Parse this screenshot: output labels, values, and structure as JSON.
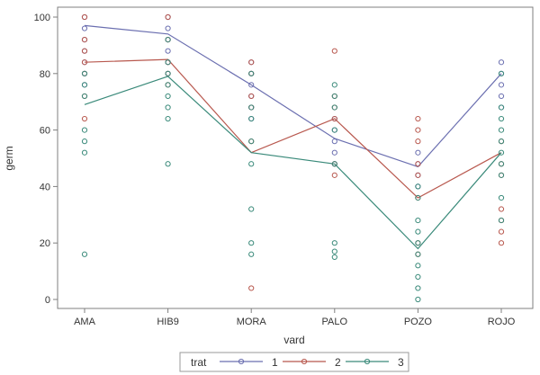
{
  "chart_data": {
    "type": "scatter",
    "xlabel": "vard",
    "ylabel": "germ",
    "categories": [
      "AMA",
      "HIB9",
      "MORA",
      "PALO",
      "POZO",
      "ROJO"
    ],
    "ylim": [
      0,
      100
    ],
    "yticks": [
      "0",
      "20",
      "40",
      "60",
      "80",
      "100"
    ],
    "grid": false,
    "legend": {
      "title": "trat",
      "position": "bottom"
    },
    "series": [
      {
        "name": "1",
        "color": "#6b6fb0",
        "mean": [
          97,
          94,
          76,
          57,
          47,
          80
        ],
        "points": [
          [
            100,
            96,
            92,
            88,
            84,
            80,
            76
          ],
          [
            100,
            96,
            92,
            88,
            84,
            80
          ],
          [
            84,
            80,
            76,
            72,
            68,
            64
          ],
          [
            64,
            60,
            56,
            52,
            48
          ],
          [
            52,
            48,
            44,
            40
          ],
          [
            84,
            80,
            76,
            72,
            68
          ]
        ]
      },
      {
        "name": "2",
        "color": "#b8584e",
        "mean": [
          84,
          85,
          52,
          64,
          36,
          52
        ],
        "points": [
          [
            100,
            92,
            88,
            84,
            80,
            72,
            64
          ],
          [
            100,
            92,
            84,
            80,
            76
          ],
          [
            84,
            80,
            72,
            68,
            56,
            4
          ],
          [
            88,
            72,
            68,
            64,
            48,
            44
          ],
          [
            64,
            60,
            56,
            48,
            44,
            36,
            20,
            16
          ],
          [
            56,
            48,
            44,
            32,
            28,
            24,
            20
          ]
        ]
      },
      {
        "name": "3",
        "color": "#3a8a7a",
        "mean": [
          69,
          79,
          52,
          48,
          18,
          52
        ],
        "points": [
          [
            80,
            76,
            72,
            60,
            56,
            52,
            16
          ],
          [
            92,
            84,
            80,
            76,
            72,
            68,
            64,
            48
          ],
          [
            80,
            68,
            64,
            56,
            48,
            32,
            20,
            16
          ],
          [
            76,
            72,
            68,
            60,
            48,
            20,
            17,
            15
          ],
          [
            40,
            36,
            28,
            24,
            20,
            16,
            12,
            8,
            4,
            0
          ],
          [
            80,
            68,
            64,
            60,
            56,
            52,
            48,
            44,
            36,
            28
          ]
        ]
      }
    ]
  }
}
